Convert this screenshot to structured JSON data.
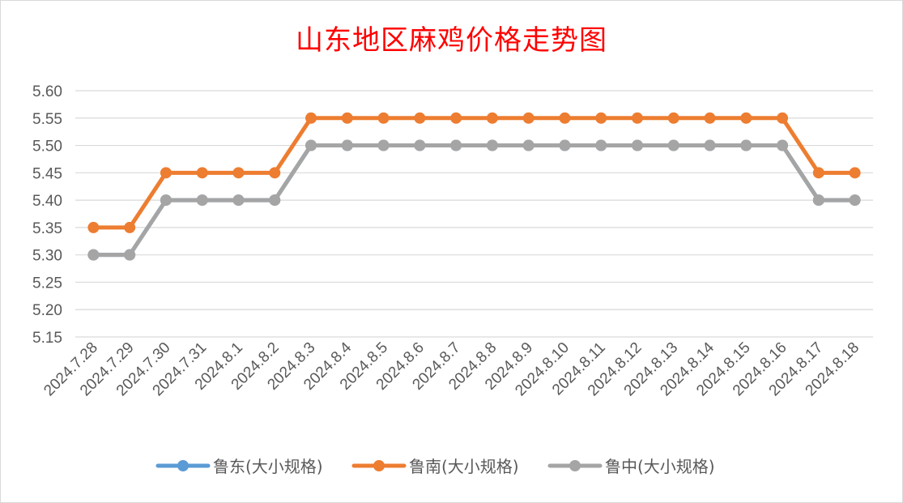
{
  "chart_data": {
    "type": "line",
    "title": "山东地区麻鸡价格走势图",
    "xlabel": "",
    "ylabel": "",
    "categories": [
      "2024.7.28",
      "2024.7.29",
      "2024.7.30",
      "2024.7.31",
      "2024.8.1",
      "2024.8.2",
      "2024.8.3",
      "2024.8.4",
      "2024.8.5",
      "2024.8.6",
      "2024.8.7",
      "2024.8.8",
      "2024.8.9",
      "2024.8.10",
      "2024.8.11",
      "2024.8.12",
      "2024.8.13",
      "2024.8.14",
      "2024.8.15",
      "2024.8.16",
      "2024.8.17",
      "2024.8.18"
    ],
    "ylim": [
      5.15,
      5.6
    ],
    "yticks": [
      "5.60",
      "5.55",
      "5.50",
      "5.45",
      "5.40",
      "5.35",
      "5.30",
      "5.25",
      "5.20",
      "5.15"
    ],
    "grid": true,
    "legend_position": "bottom",
    "series": [
      {
        "name": "鲁东(大小规格)",
        "color": "#5b9bd5",
        "values": [
          5.3,
          5.3,
          5.4,
          5.4,
          5.4,
          5.4,
          5.5,
          5.5,
          5.5,
          5.5,
          5.5,
          5.5,
          5.5,
          5.5,
          5.5,
          5.5,
          5.5,
          5.5,
          5.5,
          5.5,
          5.4,
          5.4
        ]
      },
      {
        "name": "鲁南(大小规格)",
        "color": "#ed7d31",
        "values": [
          5.35,
          5.35,
          5.45,
          5.45,
          5.45,
          5.45,
          5.55,
          5.55,
          5.55,
          5.55,
          5.55,
          5.55,
          5.55,
          5.55,
          5.55,
          5.55,
          5.55,
          5.55,
          5.55,
          5.55,
          5.45,
          5.45
        ]
      },
      {
        "name": "鲁中(大小规格)",
        "color": "#a5a5a5",
        "values": [
          5.3,
          5.3,
          5.4,
          5.4,
          5.4,
          5.4,
          5.5,
          5.5,
          5.5,
          5.5,
          5.5,
          5.5,
          5.5,
          5.5,
          5.5,
          5.5,
          5.5,
          5.5,
          5.5,
          5.5,
          5.4,
          5.4
        ]
      }
    ]
  }
}
